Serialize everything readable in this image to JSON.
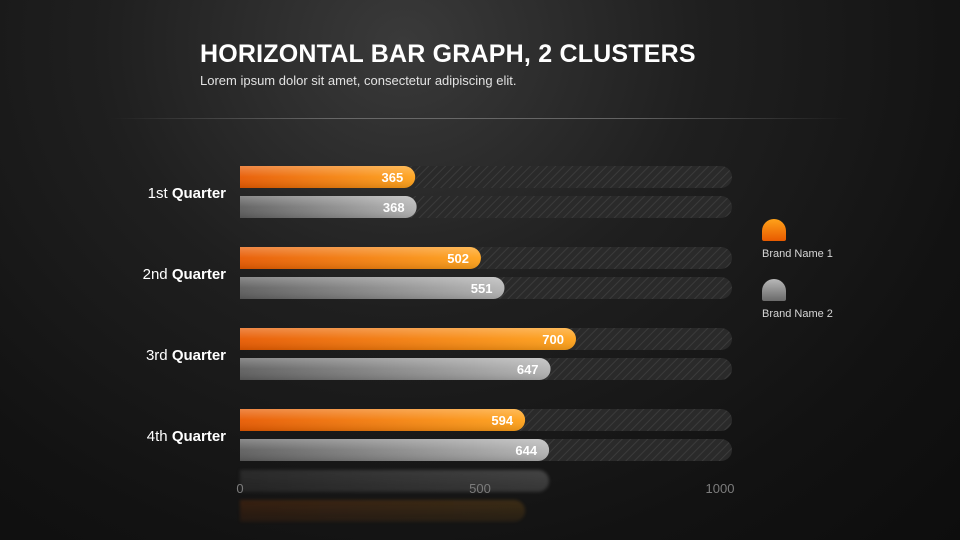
{
  "header": {
    "title": "HORIZONTAL BAR GRAPH, 2 CLUSTERS",
    "subtitle": "Lorem ipsum dolor sit amet, consectetur adipiscing elit."
  },
  "legend": {
    "items": [
      {
        "label": "Brand Name 1",
        "color": "#ff7a00"
      },
      {
        "label": "Brand Name 2",
        "color": "#9a9a9a"
      }
    ]
  },
  "colors": {
    "orange_light": "#ffa21a",
    "orange_dark": "#f06000",
    "gray_light": "#b0b0b0",
    "gray_dark": "#6a6a6a",
    "track": "#2b2b2b"
  },
  "chart_data": {
    "type": "bar",
    "orientation": "horizontal",
    "categories": [
      {
        "prefix": "1st",
        "bold": "Quarter"
      },
      {
        "prefix": "2nd",
        "bold": "Quarter"
      },
      {
        "prefix": "3rd",
        "bold": "Quarter"
      },
      {
        "prefix": "4th",
        "bold": "Quarter"
      }
    ],
    "series": [
      {
        "name": "Brand Name 1",
        "values": [
          365,
          502,
          700,
          594
        ]
      },
      {
        "name": "Brand Name 2",
        "values": [
          368,
          551,
          647,
          644
        ]
      }
    ],
    "xlim": [
      0,
      1000
    ],
    "xticks": [
      "0",
      "500",
      "1000"
    ],
    "legend_position": "right",
    "grid": false
  }
}
